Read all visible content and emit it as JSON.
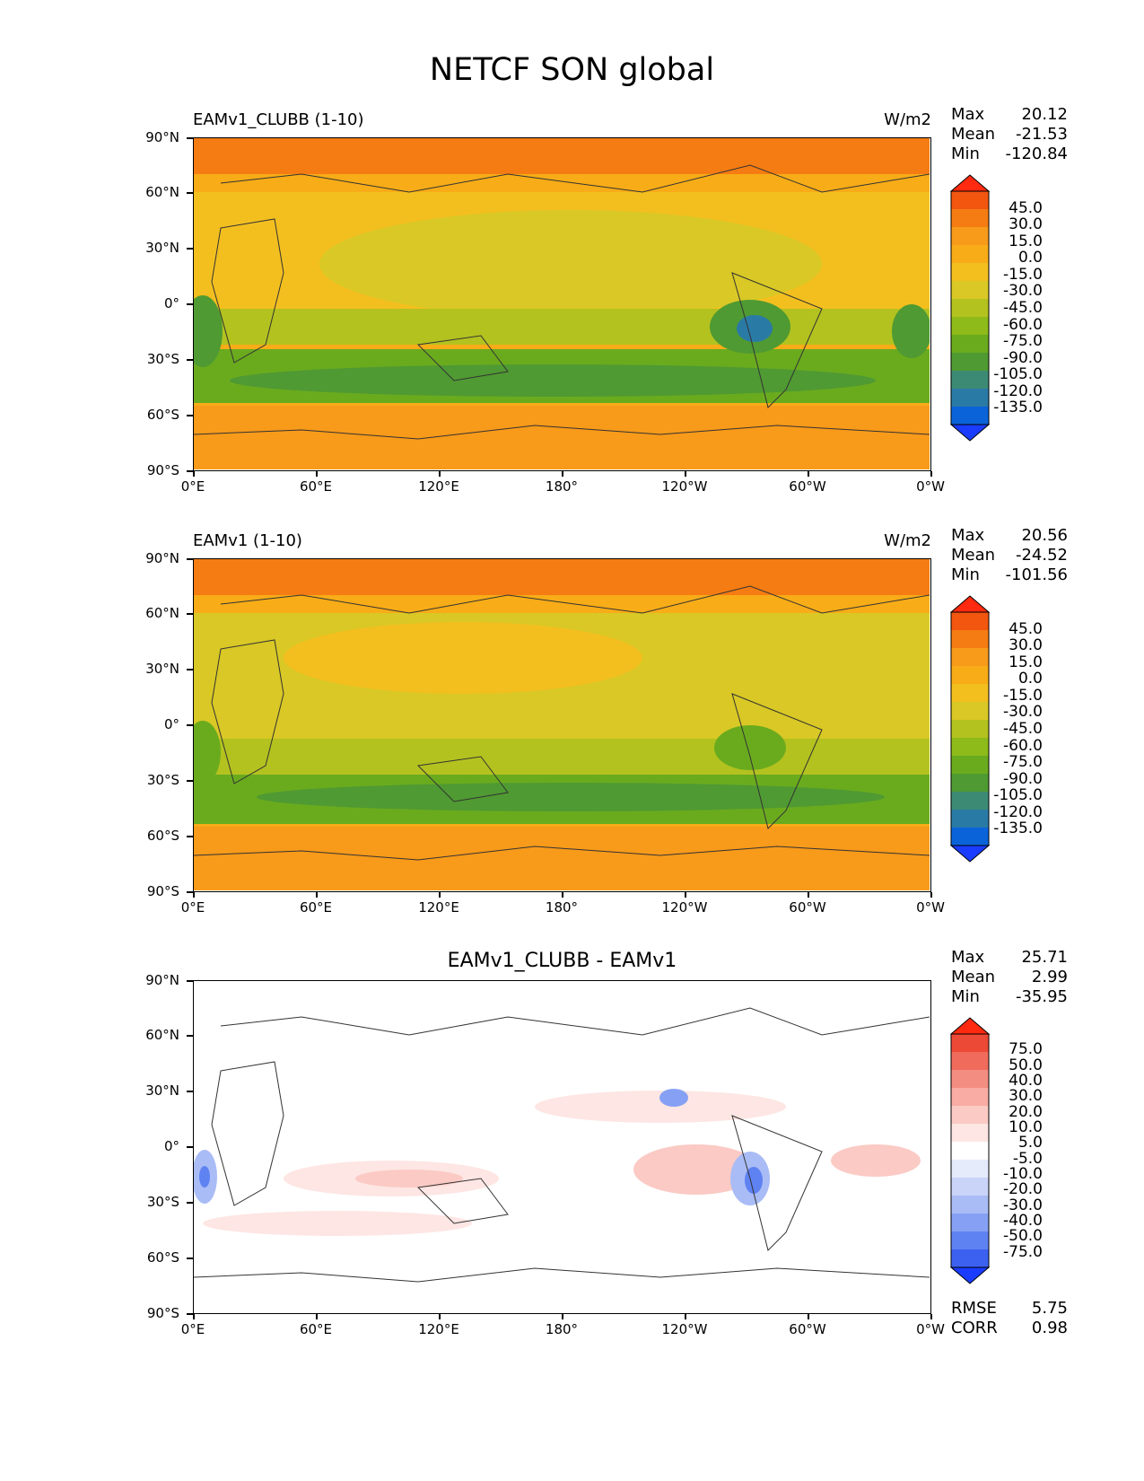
{
  "title": "NETCF SON global",
  "axes": {
    "y_labels": [
      "90°N",
      "60°N",
      "30°N",
      "0°",
      "30°S",
      "60°S",
      "90°S"
    ],
    "x_labels": [
      "0°E",
      "60°E",
      "120°E",
      "180°",
      "120°W",
      "60°W",
      "0°W"
    ]
  },
  "colors": {
    "seq": [
      "#1a3cff",
      "#0b63d9",
      "#2a7aa6",
      "#3c8a73",
      "#4f9a32",
      "#6aab1e",
      "#8eba1a",
      "#b3c21f",
      "#d9c825",
      "#f3bf1f",
      "#f8ac17",
      "#f89a1a",
      "#f57c12",
      "#f2560f",
      "#ff2a10"
    ],
    "div": [
      "#1a3cff",
      "#3c61f0",
      "#5f82f2",
      "#86a1f4",
      "#a9bcf6",
      "#c9d4f8",
      "#e5ebfb",
      "#ffffff",
      "#fde6e3",
      "#fbcac4",
      "#f8aca3",
      "#f48d81",
      "#f06b5c",
      "#ec4a36",
      "#ff2a10"
    ]
  },
  "chart_data": [
    {
      "type": "heatmap",
      "title": "EAMv1_CLUBB (1-10)",
      "units": "W/m2",
      "stats": {
        "max_label": "Max",
        "max": "20.12",
        "mean_label": "Mean",
        "mean": "-21.53",
        "min_label": "Min",
        "min": "-120.84"
      },
      "colorbar_levels": [
        "45.0",
        "30.0",
        "15.0",
        "0.0",
        "-15.0",
        "-30.0",
        "-45.0",
        "-60.0",
        "-75.0",
        "-90.0",
        "-105.0",
        "-120.0",
        "-135.0"
      ],
      "xlim": [
        0,
        360
      ],
      "ylim": [
        -90,
        90
      ]
    },
    {
      "type": "heatmap",
      "title": "EAMv1 (1-10)",
      "units": "W/m2",
      "stats": {
        "max_label": "Max",
        "max": "20.56",
        "mean_label": "Mean",
        "mean": "-24.52",
        "min_label": "Min",
        "min": "-101.56"
      },
      "colorbar_levels": [
        "45.0",
        "30.0",
        "15.0",
        "0.0",
        "-15.0",
        "-30.0",
        "-45.0",
        "-60.0",
        "-75.0",
        "-90.0",
        "-105.0",
        "-120.0",
        "-135.0"
      ],
      "xlim": [
        0,
        360
      ],
      "ylim": [
        -90,
        90
      ]
    },
    {
      "type": "heatmap",
      "title": "EAMv1_CLUBB - EAMv1",
      "units": "",
      "stats": {
        "max_label": "Max",
        "max": "25.71",
        "mean_label": "Mean",
        "mean": "2.99",
        "min_label": "Min",
        "min": "-35.95"
      },
      "colorbar_levels": [
        "75.0",
        "50.0",
        "40.0",
        "30.0",
        "20.0",
        "10.0",
        "5.0",
        "-5.0",
        "-10.0",
        "-20.0",
        "-30.0",
        "-40.0",
        "-50.0",
        "-75.0"
      ],
      "extra": {
        "rmse_label": "RMSE",
        "rmse": "5.75",
        "corr_label": "CORR",
        "corr": "0.98"
      },
      "xlim": [
        0,
        360
      ],
      "ylim": [
        -90,
        90
      ]
    }
  ]
}
